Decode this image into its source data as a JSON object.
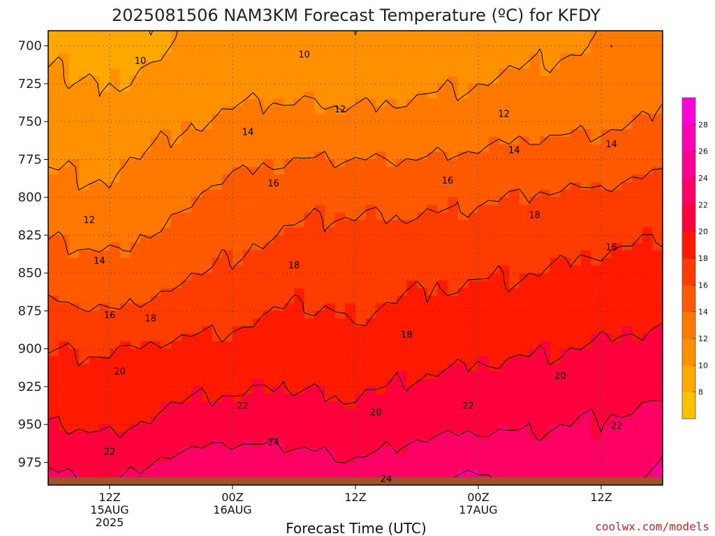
{
  "chart_data": {
    "type": "heatmap",
    "title": "2025081506 NAM3KM Forecast Temperature (ºC) for KFDY",
    "xlabel": "Forecast Time (UTC)",
    "ylabel": "",
    "x_ticks": [
      {
        "label": "12Z",
        "sub": [
          "15AUG",
          "2025"
        ],
        "hour": 6
      },
      {
        "label": "00Z",
        "sub": [
          "16AUG"
        ],
        "hour": 18
      },
      {
        "label": "12Z",
        "sub": [],
        "hour": 30
      },
      {
        "label": "00Z",
        "sub": [
          "17AUG"
        ],
        "hour": 42
      },
      {
        "label": "12Z",
        "sub": [],
        "hour": 54
      }
    ],
    "x_range_hours": [
      0,
      60
    ],
    "y_ticks": [
      700,
      725,
      750,
      775,
      800,
      825,
      850,
      875,
      900,
      925,
      950,
      975
    ],
    "y_range_hpa": [
      690,
      990
    ],
    "y_reversed": true,
    "grid": "dotted",
    "colorbar": {
      "levels": [
        6,
        8,
        10,
        12,
        14,
        16,
        18,
        20,
        22,
        24,
        26,
        28,
        30
      ],
      "tick_labels": [
        "8",
        "10",
        "12",
        "14",
        "16",
        "18",
        "20",
        "22",
        "24",
        "26",
        "28"
      ],
      "colors": [
        "#ffc000",
        "#ffa800",
        "#ff9000",
        "#ff7800",
        "#ff5a00",
        "#ff3c00",
        "#ff1a00",
        "#ff003c",
        "#ff0064",
        "#ff0090",
        "#ff00b4",
        "#ff00dc"
      ]
    },
    "contour_levels": [
      10,
      12,
      14,
      16,
      18,
      20,
      22,
      24
    ],
    "contour_labels": [
      {
        "text": "10",
        "hour": 9,
        "p": 710
      },
      {
        "text": "10",
        "hour": 25,
        "p": 706
      },
      {
        "text": "12",
        "hour": 28.5,
        "p": 742
      },
      {
        "text": "12",
        "hour": 44.5,
        "p": 745
      },
      {
        "text": "14",
        "hour": 19.5,
        "p": 757
      },
      {
        "text": "14",
        "hour": 45.5,
        "p": 769
      },
      {
        "text": "14",
        "hour": 55,
        "p": 765
      },
      {
        "text": "16",
        "hour": 22,
        "p": 791
      },
      {
        "text": "16",
        "hour": 39,
        "p": 789
      },
      {
        "text": "12",
        "hour": 4,
        "p": 815
      },
      {
        "text": "18",
        "hour": 47.5,
        "p": 812
      },
      {
        "text": "16",
        "hour": 55,
        "p": 833
      },
      {
        "text": "14",
        "hour": 5,
        "p": 842
      },
      {
        "text": "18",
        "hour": 24,
        "p": 845
      },
      {
        "text": "16",
        "hour": 6,
        "p": 878
      },
      {
        "text": "18",
        "hour": 10,
        "p": 880
      },
      {
        "text": "18",
        "hour": 35,
        "p": 891
      },
      {
        "text": "20",
        "hour": 7,
        "p": 915
      },
      {
        "text": "20",
        "hour": 32,
        "p": 942
      },
      {
        "text": "22",
        "hour": 19,
        "p": 938
      },
      {
        "text": "22",
        "hour": 41,
        "p": 938
      },
      {
        "text": "20",
        "hour": 50,
        "p": 918
      },
      {
        "text": "22",
        "hour": 6,
        "p": 968
      },
      {
        "text": "22",
        "hour": 55.5,
        "p": 951
      },
      {
        "text": "24",
        "hour": 22,
        "p": 962
      },
      {
        "text": "24",
        "hour": 33,
        "p": 986
      }
    ],
    "temperature_profiles": [
      {
        "hour": 0,
        "t": [
          9.6,
          11.0,
          12.8,
          15.0,
          16.4,
          18.0,
          20.0,
          22.4
        ]
      },
      {
        "hour": 6,
        "t": [
          9.2,
          10.6,
          12.2,
          14.6,
          16.0,
          17.8,
          19.6,
          21.6
        ]
      },
      {
        "hour": 12,
        "t": [
          10.0,
          11.6,
          13.6,
          15.4,
          16.8,
          18.4,
          20.6,
          23.2
        ]
      },
      {
        "hour": 18,
        "t": [
          10.6,
          12.4,
          14.6,
          16.4,
          17.4,
          18.6,
          21.0,
          23.8
        ]
      },
      {
        "hour": 24,
        "t": [
          10.4,
          12.6,
          15.4,
          17.2,
          18.2,
          19.0,
          21.0,
          23.4
        ]
      },
      {
        "hour": 30,
        "t": [
          10.2,
          12.4,
          15.6,
          17.4,
          17.8,
          18.6,
          20.6,
          22.6
        ]
      },
      {
        "hour": 36,
        "t": [
          10.6,
          12.6,
          15.4,
          17.6,
          18.4,
          19.2,
          21.4,
          23.6
        ]
      },
      {
        "hour": 42,
        "t": [
          11.0,
          13.0,
          15.8,
          17.8,
          18.6,
          19.6,
          21.6,
          24.2
        ]
      },
      {
        "hour": 48,
        "t": [
          11.6,
          13.4,
          16.2,
          18.0,
          18.8,
          19.8,
          21.8,
          23.4
        ]
      },
      {
        "hour": 54,
        "t": [
          12.0,
          13.6,
          16.4,
          18.6,
          19.2,
          20.2,
          22.2,
          22.8
        ]
      },
      {
        "hour": 60,
        "t": [
          12.6,
          14.2,
          16.8,
          19.0,
          19.6,
          20.6,
          22.6,
          24.4
        ]
      }
    ],
    "profile_pressures_hpa": [
      700,
      750,
      800,
      850,
      875,
      900,
      950,
      985
    ],
    "ground": {
      "p": 985,
      "color": "#a0522d"
    }
  },
  "credit": "coolwx.com/models"
}
